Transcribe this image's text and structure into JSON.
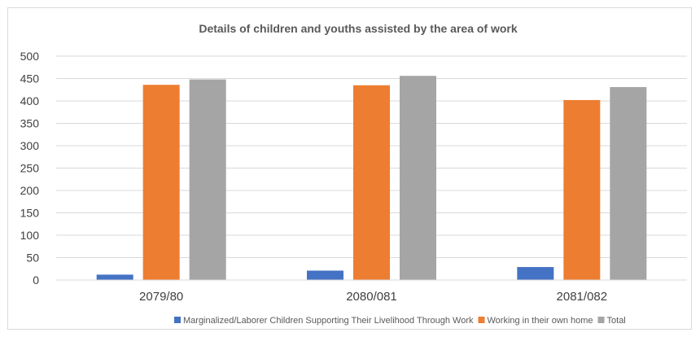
{
  "chart_data": {
    "type": "bar",
    "title": "Details of children and youths assisted by the area of work",
    "xlabel": "",
    "ylabel": "",
    "categories": [
      "2079/80",
      "2080/081",
      "2081/082"
    ],
    "series": [
      {
        "name": "Marginalized/Laborer Children Supporting Their Livelihood Through Work",
        "color": "#4472c4",
        "values": [
          12,
          21,
          29
        ]
      },
      {
        "name": "Working in their own home",
        "color": "#ed7d31",
        "values": [
          436,
          435,
          402
        ]
      },
      {
        "name": "Total",
        "color": "#a5a5a5",
        "values": [
          448,
          456,
          431
        ]
      }
    ],
    "ylim": [
      0,
      500
    ],
    "yticks": [
      0,
      50,
      100,
      150,
      200,
      250,
      300,
      350,
      400,
      450,
      500
    ],
    "grid": true,
    "legend_position": "bottom"
  }
}
